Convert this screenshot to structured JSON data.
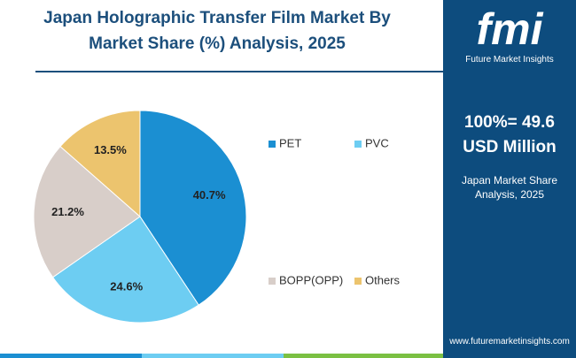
{
  "chart_data": {
    "type": "pie",
    "title": "Japan Holographic Transfer Film Market By Market Share (%) Analysis, 2025",
    "categories": [
      "PET",
      "PVC",
      "BOPP(OPP)",
      "Others"
    ],
    "values": [
      40.7,
      24.6,
      21.2,
      13.5
    ],
    "value_labels": [
      "40.7%",
      "24.6%",
      "21.2%",
      "13.5%"
    ],
    "colors": [
      "#1b8fd2",
      "#6dcdf2",
      "#d8cec9",
      "#ecc46e"
    ]
  },
  "panel": {
    "logo": "fmi",
    "brand": "Future Market Insights",
    "total": "100%= 49.6",
    "unit": "USD Million",
    "subtitle": "Japan Market Share Analysis, 2025",
    "website": "www.futuremarketinsights.com"
  }
}
